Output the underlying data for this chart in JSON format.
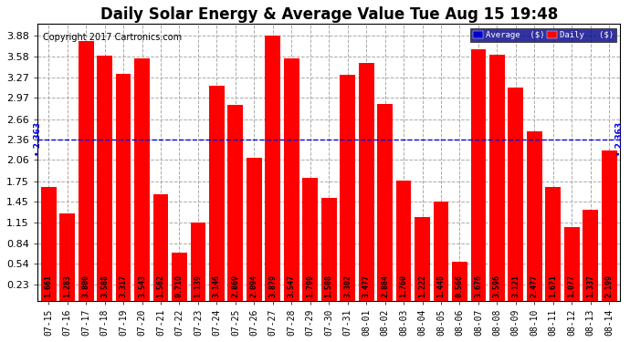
{
  "title": "Daily Solar Energy & Average Value Tue Aug 15 19:48",
  "copyright": "Copyright 2017 Cartronics.com",
  "categories": [
    "07-15",
    "07-16",
    "07-17",
    "07-18",
    "07-19",
    "07-20",
    "07-21",
    "07-22",
    "07-23",
    "07-24",
    "07-25",
    "07-26",
    "07-27",
    "07-28",
    "07-29",
    "07-30",
    "07-31",
    "08-01",
    "08-02",
    "08-03",
    "08-04",
    "08-05",
    "08-06",
    "08-07",
    "08-08",
    "08-09",
    "08-10",
    "08-11",
    "08-12",
    "08-13",
    "08-14"
  ],
  "values": [
    1.661,
    1.283,
    3.8,
    3.588,
    3.317,
    3.543,
    1.562,
    0.71,
    1.139,
    3.146,
    2.869,
    2.094,
    3.879,
    3.547,
    1.799,
    1.508,
    3.302,
    3.477,
    2.884,
    1.76,
    1.222,
    1.448,
    0.566,
    3.676,
    3.596,
    3.121,
    2.477,
    1.671,
    1.077,
    1.337,
    2.199
  ],
  "average": 2.363,
  "bar_color": "#ff0000",
  "avg_line_color": "#0000dd",
  "background_color": "#ffffff",
  "plot_bg_color": "#ffffff",
  "grid_color": "#aaaaaa",
  "yticks": [
    0.23,
    0.54,
    0.84,
    1.15,
    1.45,
    1.75,
    2.06,
    2.36,
    2.66,
    2.97,
    3.27,
    3.58,
    3.88
  ],
  "ylim_min": 0.0,
  "ylim_max": 4.05,
  "legend_avg_color": "#0000cc",
  "legend_daily_color": "#ff0000",
  "title_fontsize": 12,
  "copyright_fontsize": 7,
  "value_fontsize": 6,
  "tick_fontsize": 7,
  "ytick_fontsize": 8,
  "avg_fontsize": 6.5
}
